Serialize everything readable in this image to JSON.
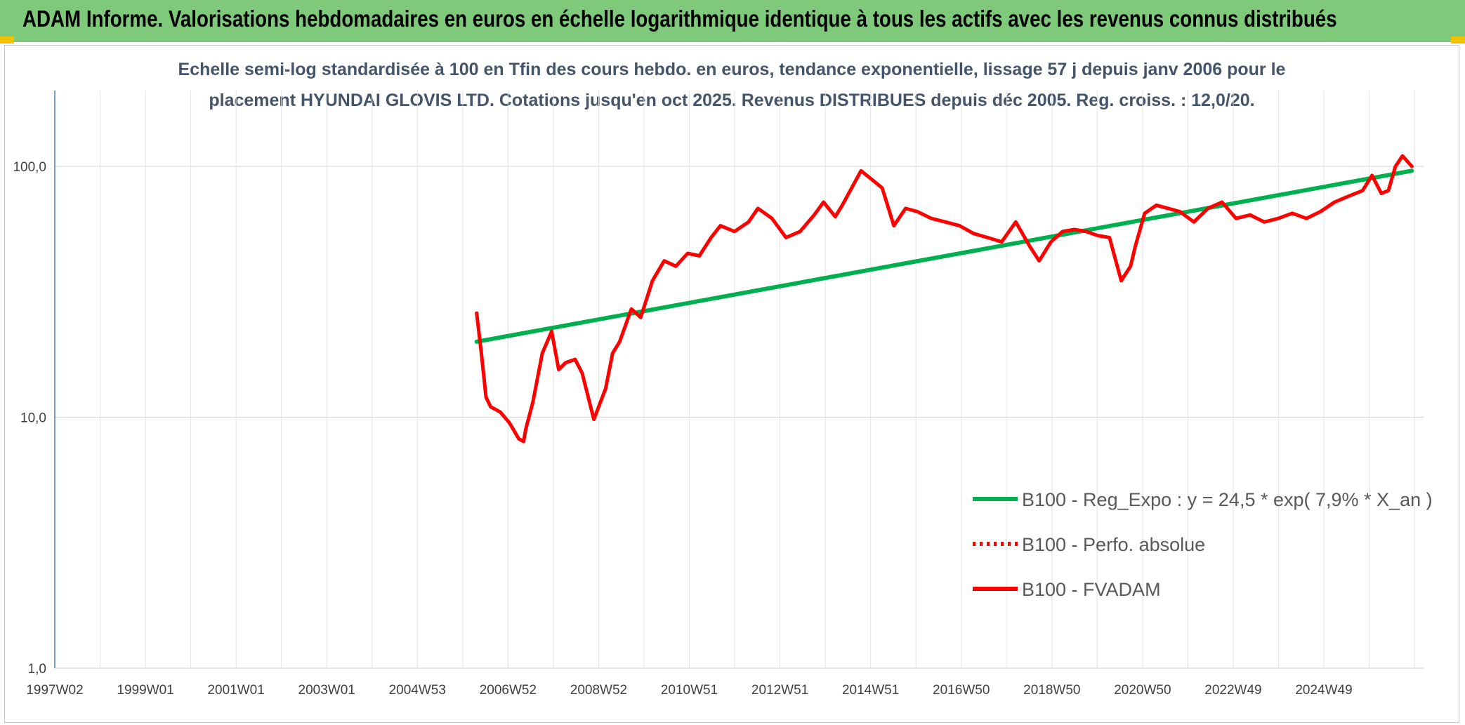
{
  "header": {
    "title": "ADAM Informe. Valorisations hebdomadaires en euros en échelle logarithmique identique à tous les actifs avec les revenus connus distribués"
  },
  "chart_data": {
    "type": "line",
    "subtitle_line1": "Echelle semi-log standardisée à 100 en Tfin des cours hebdo. en euros, tendance exponentielle, lissage 57 j depuis janv 2006 pour le",
    "subtitle_line2": "placement HYUNDAI GLOVIS LTD. Cotations jusqu'en oct 2025. Revenus DISTRIBUES depuis déc 2005. Reg. croiss. : 12,0/20.",
    "y_scale": "log",
    "ylim": [
      1,
      170
    ],
    "y_ticks": [
      "1,0",
      "10,0",
      "100,0"
    ],
    "x_ticks": [
      "1997W02",
      "1999W01",
      "2001W01",
      "2003W01",
      "2004W53",
      "2006W52",
      "2008W52",
      "2010W51",
      "2012W51",
      "2014W51",
      "2016W50",
      "2018W50",
      "2020W50",
      "2022W49",
      "2024W49"
    ],
    "xlim": [
      1997.0,
      2026.2
    ],
    "grid": true,
    "legend_position": "right-middle",
    "series": [
      {
        "name": "B100 - Reg_Expo : y = 24,5 * exp( 7,9% * X_an )",
        "color": "#00b050",
        "style": "solid",
        "x": [
          2006.0,
          2025.95
        ],
        "y": [
          20.0,
          96.0
        ]
      },
      {
        "name": "B100 - Perfo. absolue",
        "color": "#ff0000",
        "style": "dotted",
        "x": [],
        "y": []
      },
      {
        "name": "B100 - FVADAM",
        "color": "#ff0000",
        "style": "solid",
        "x": [
          2006.0,
          2006.1,
          2006.2,
          2006.3,
          2006.5,
          2006.7,
          2006.9,
          2007.0,
          2007.05,
          2007.2,
          2007.4,
          2007.6,
          2007.75,
          2007.9,
          2008.1,
          2008.25,
          2008.5,
          2008.75,
          2008.9,
          2009.05,
          2009.3,
          2009.5,
          2009.75,
          2010.0,
          2010.25,
          2010.5,
          2010.75,
          2011.0,
          2011.2,
          2011.5,
          2011.8,
          2012.0,
          2012.3,
          2012.6,
          2012.9,
          2013.2,
          2013.4,
          2013.65,
          2013.8,
          2014.0,
          2014.2,
          2014.45,
          2014.65,
          2014.9,
          2015.15,
          2015.4,
          2015.7,
          2016.0,
          2016.3,
          2016.6,
          2016.9,
          2017.2,
          2017.5,
          2017.8,
          2018.0,
          2018.25,
          2018.5,
          2018.75,
          2019.0,
          2019.25,
          2019.5,
          2019.75,
          2019.95,
          2020.05,
          2020.25,
          2020.5,
          2020.75,
          2021.0,
          2021.3,
          2021.6,
          2021.9,
          2022.2,
          2022.5,
          2022.8,
          2023.1,
          2023.4,
          2023.7,
          2024.0,
          2024.3,
          2024.6,
          2024.9,
          2025.1,
          2025.3,
          2025.45,
          2025.6,
          2025.75,
          2025.95
        ],
        "y": [
          26.0,
          18.0,
          12.0,
          11.0,
          10.5,
          9.5,
          8.2,
          8.0,
          9.0,
          11.5,
          18.0,
          22.0,
          15.5,
          16.5,
          17.0,
          15.0,
          9.8,
          13.0,
          18.0,
          20.0,
          27.0,
          25.0,
          35.0,
          42.0,
          40.0,
          45.0,
          44.0,
          52.0,
          58.0,
          55.0,
          60.0,
          68.0,
          62.0,
          52.0,
          55.0,
          64.0,
          72.0,
          63.0,
          70.0,
          82.0,
          96.0,
          88.0,
          82.0,
          58.0,
          68.0,
          66.0,
          62.0,
          60.0,
          58.0,
          54.0,
          52.0,
          50.0,
          60.0,
          48.0,
          42.0,
          50.0,
          55.0,
          56.0,
          55.0,
          53.0,
          52.0,
          35.0,
          40.0,
          48.0,
          65.0,
          70.0,
          68.0,
          66.0,
          60.0,
          68.0,
          72.0,
          62.0,
          64.0,
          60.0,
          62.0,
          65.0,
          62.0,
          66.0,
          72.0,
          76.0,
          80.0,
          92.0,
          78.0,
          80.0,
          100.0,
          110.0,
          100.0
        ]
      }
    ]
  }
}
